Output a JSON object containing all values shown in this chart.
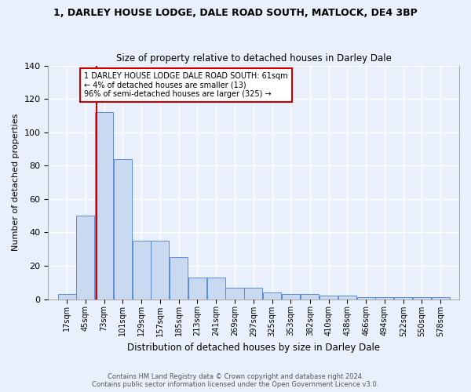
{
  "title": "1, DARLEY HOUSE LODGE, DALE ROAD SOUTH, MATLOCK, DE4 3BP",
  "subtitle": "Size of property relative to detached houses in Darley Dale",
  "xlabel": "Distribution of detached houses by size in Darley Dale",
  "ylabel": "Number of detached properties",
  "bar_values": [
    3,
    50,
    112,
    84,
    35,
    35,
    25,
    13,
    13,
    7,
    7,
    4,
    3,
    3,
    2,
    2,
    1,
    1,
    1,
    1,
    1
  ],
  "bin_labels": [
    "17sqm",
    "45sqm",
    "73sqm",
    "101sqm",
    "129sqm",
    "157sqm",
    "185sqm",
    "213sqm",
    "241sqm",
    "269sqm",
    "297sqm",
    "325sqm",
    "353sqm",
    "382sqm",
    "410sqm",
    "438sqm",
    "466sqm",
    "494sqm",
    "522sqm",
    "550sqm",
    "578sqm"
  ],
  "bar_color": "#c9d9f0",
  "bar_edge_color": "#5b8dd9",
  "vline_x": 61,
  "vline_color": "#cc0000",
  "annotation_line1": "1 DARLEY HOUSE LODGE DALE ROAD SOUTH: 61sqm",
  "annotation_line2": "← 4% of detached houses are smaller (13)",
  "annotation_line3": "96% of semi-detached houses are larger (325) →",
  "annotation_box_color": "#ffffff",
  "annotation_box_edge": "#cc0000",
  "ylim": [
    0,
    140
  ],
  "yticks": [
    0,
    20,
    40,
    60,
    80,
    100,
    120,
    140
  ],
  "footer1": "Contains HM Land Registry data © Crown copyright and database right 2024.",
  "footer2": "Contains public sector information licensed under the Open Government Licence v3.0.",
  "bg_color": "#eaf0fb",
  "grid_color": "#ffffff"
}
